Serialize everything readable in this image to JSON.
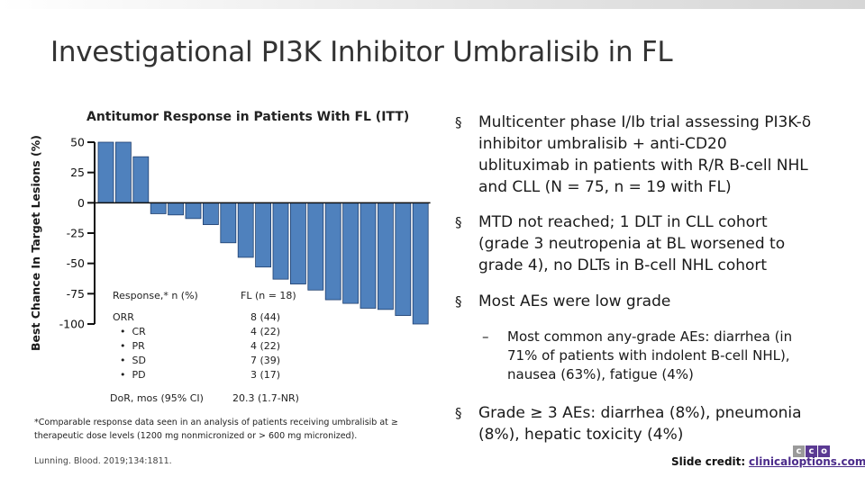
{
  "slide": {
    "title": "Investigational PI3K Inhibitor Umbralisib in FL"
  },
  "chart_data": {
    "type": "bar",
    "title": "Antitumor Response in Patients With FL (ITT)",
    "ylabel": "Best Chance In Target Lesions (%)",
    "xlabel": "",
    "ylim": [
      -100,
      50
    ],
    "yticks": [
      "50",
      "25",
      "0",
      "-25",
      "-50",
      "-75",
      "-100"
    ],
    "ytick_values": [
      50,
      25,
      0,
      -25,
      -50,
      -75,
      -100
    ],
    "bar_color": "#4f81bd",
    "values": [
      50,
      50,
      38,
      -9,
      -10,
      -13,
      -18,
      -33,
      -45,
      -53,
      -63,
      -67,
      -72,
      -80,
      -83,
      -87,
      -88,
      -93,
      -100
    ],
    "grid": false,
    "legend": "none"
  },
  "response_table": {
    "header_response": "Response,* n (%)",
    "header_fl": "FL (n = 18)",
    "rows": [
      {
        "label": "ORR",
        "value": "8 (44)"
      },
      {
        "label": "CR",
        "value": "4 (22)"
      },
      {
        "label": "PR",
        "value": "4 (22)"
      },
      {
        "label": "SD",
        "value": "7 (39)"
      },
      {
        "label": "PD",
        "value": "3 (17)"
      }
    ],
    "dor_label": "DoR, mos (95% CI)",
    "dor_value": "20.3 (1.7-NR)"
  },
  "footnote": "*Comparable response data seen in an analysis of patients receiving umbralisib at ≥ therapeutic dose levels (1200 mg nonmicronized or > 600 mg micronized).",
  "citation": "Lunning. Blood. 2019;134:1811.",
  "bullets": [
    {
      "marker": "§",
      "text": "Multicenter phase I/Ib trial assessing PI3K-δ inhibitor umbralisib + anti-CD20 ublituximab in patients with R/R B-cell NHL and CLL (N = 75, n = 19 with FL)"
    },
    {
      "marker": "§",
      "text": "MTD not reached; 1 DLT in CLL cohort (grade 3 neutropenia at BL worsened to grade 4), no DLTs in B-cell NHL cohort"
    },
    {
      "marker": "§",
      "text": "Most AEs were low grade"
    },
    {
      "marker": "§",
      "text": "Grade ≥ 3 AEs: diarrhea (8%), pneumonia (8%), hepatic toxicity (4%)"
    }
  ],
  "sub_bullet": {
    "marker": "–",
    "text": "Most common any-grade AEs: diarrhea (in 71% of patients with indolent B-cell NHL), nausea (63%), fatigue (4%)"
  },
  "credit": {
    "label": "Slide credit:",
    "link": "clinicaloptions.com"
  },
  "logo": {
    "letters": [
      "c",
      "c",
      "o"
    ],
    "colors": [
      "#9a9a9a",
      "#5b3a93",
      "#5b3a93"
    ]
  }
}
